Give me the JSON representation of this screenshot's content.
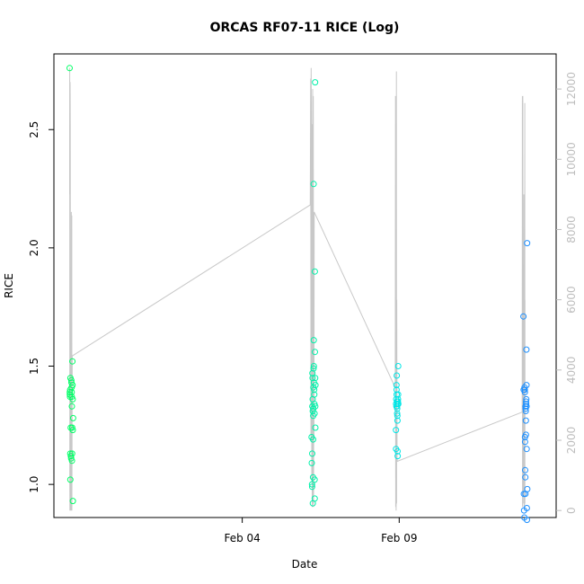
{
  "chart_data": {
    "type": "scatter",
    "title": "ORCAS RF07-11 RICE (Log)",
    "xlabel": "Date",
    "ylabel": "RICE",
    "x_ticks": [
      {
        "date": "2016-02-04",
        "label": "Feb 04"
      },
      {
        "date": "2016-02-09",
        "label": "Feb 09"
      }
    ],
    "xlim": [
      "2016-01-29T00:00",
      "2016-02-14T00:00"
    ],
    "ylim": [
      0.86,
      2.82
    ],
    "y_ticks": [
      1.0,
      1.5,
      2.0,
      2.5
    ],
    "y2lim": [
      -200,
      13000
    ],
    "y2_ticks": [
      0,
      2000,
      4000,
      6000,
      8000,
      10000,
      12000
    ],
    "grid": false,
    "line_color": "#c8c8c8",
    "series": [
      {
        "color": "#00ff66",
        "points": [
          [
            "2016-01-29T12:00",
            2.76
          ],
          [
            "2016-01-29T12:10",
            1.39
          ],
          [
            "2016-01-29T12:15",
            1.38
          ],
          [
            "2016-01-29T12:20",
            1.37
          ],
          [
            "2016-01-29T12:25",
            1.4
          ],
          [
            "2016-01-29T12:30",
            1.13
          ],
          [
            "2016-01-29T12:35",
            1.02
          ],
          [
            "2016-01-29T12:40",
            1.45
          ],
          [
            "2016-01-29T12:50",
            1.24
          ],
          [
            "2016-01-29T13:00",
            1.12
          ],
          [
            "2016-01-29T13:10",
            1.11
          ],
          [
            "2016-01-29T13:20",
            1.44
          ],
          [
            "2016-01-29T13:25",
            1.43
          ],
          [
            "2016-01-29T13:30",
            1.41
          ],
          [
            "2016-01-29T13:35",
            1.39
          ],
          [
            "2016-01-29T13:40",
            1.37
          ],
          [
            "2016-01-29T13:45",
            1.33
          ],
          [
            "2016-01-29T13:50",
            1.1
          ],
          [
            "2016-01-29T13:55",
            1.13
          ],
          [
            "2016-01-29T14:00",
            1.24
          ],
          [
            "2016-01-29T14:10",
            1.52
          ],
          [
            "2016-01-29T14:15",
            1.42
          ],
          [
            "2016-01-29T14:20",
            1.36
          ],
          [
            "2016-01-29T14:25",
            1.23
          ],
          [
            "2016-01-29T14:30",
            0.93
          ],
          [
            "2016-01-29T14:40",
            1.28
          ]
        ]
      },
      {
        "color": "#00f2aa",
        "points": [
          [
            "2016-02-06T05:00",
            1.2
          ],
          [
            "2016-02-06T05:10",
            1.09
          ],
          [
            "2016-02-06T05:20",
            1.0
          ],
          [
            "2016-02-06T05:25",
            0.99
          ],
          [
            "2016-02-06T05:30",
            1.13
          ],
          [
            "2016-02-06T05:35",
            1.33
          ],
          [
            "2016-02-06T05:40",
            1.47
          ],
          [
            "2016-02-06T05:45",
            1.45
          ],
          [
            "2016-02-06T05:50",
            1.36
          ],
          [
            "2016-02-06T05:55",
            1.31
          ],
          [
            "2016-02-06T06:00",
            0.92
          ],
          [
            "2016-02-06T06:05",
            1.03
          ],
          [
            "2016-02-06T06:10",
            1.19
          ],
          [
            "2016-02-06T06:15",
            1.29
          ],
          [
            "2016-02-06T06:20",
            1.32
          ],
          [
            "2016-02-06T06:25",
            1.41
          ],
          [
            "2016-02-06T06:30",
            1.49
          ],
          [
            "2016-02-06T06:35",
            2.27
          ],
          [
            "2016-02-06T06:40",
            1.61
          ],
          [
            "2016-02-06T06:45",
            1.5
          ],
          [
            "2016-02-06T06:50",
            1.43
          ],
          [
            "2016-02-06T07:00",
            1.4
          ],
          [
            "2016-02-06T07:05",
            1.38
          ],
          [
            "2016-02-06T07:10",
            1.34
          ],
          [
            "2016-02-06T07:15",
            1.3
          ],
          [
            "2016-02-06T07:20",
            1.02
          ],
          [
            "2016-02-06T07:25",
            0.94
          ],
          [
            "2016-02-06T07:30",
            1.9
          ],
          [
            "2016-02-06T07:35",
            1.56
          ],
          [
            "2016-02-06T07:40",
            2.7
          ],
          [
            "2016-02-06T07:45",
            1.45
          ],
          [
            "2016-02-06T07:50",
            1.33
          ],
          [
            "2016-02-06T07:55",
            1.24
          ],
          [
            "2016-02-06T08:00",
            1.42
          ]
        ]
      },
      {
        "color": "#00e6e6",
        "points": [
          [
            "2016-02-08T21:30",
            1.23
          ],
          [
            "2016-02-08T21:35",
            1.15
          ],
          [
            "2016-02-08T21:40",
            1.34
          ],
          [
            "2016-02-08T21:45",
            1.36
          ],
          [
            "2016-02-08T21:50",
            1.33
          ],
          [
            "2016-02-08T21:55",
            1.42
          ],
          [
            "2016-02-08T22:00",
            1.4
          ],
          [
            "2016-02-08T22:05",
            1.38
          ],
          [
            "2016-02-08T22:10",
            1.46
          ],
          [
            "2016-02-08T22:15",
            1.35
          ],
          [
            "2016-02-08T22:20",
            1.33
          ],
          [
            "2016-02-08T22:25",
            1.3
          ],
          [
            "2016-02-08T22:30",
            1.32
          ],
          [
            "2016-02-08T22:35",
            1.29
          ],
          [
            "2016-02-08T22:40",
            1.27
          ],
          [
            "2016-02-08T22:45",
            1.14
          ],
          [
            "2016-02-08T22:50",
            1.12
          ],
          [
            "2016-02-08T22:55",
            1.34
          ],
          [
            "2016-02-08T23:00",
            1.35
          ],
          [
            "2016-02-08T23:05",
            1.36
          ],
          [
            "2016-02-08T23:10",
            1.38
          ],
          [
            "2016-02-08T23:15",
            1.5
          ],
          [
            "2016-02-08T23:20",
            1.34
          ]
        ]
      },
      {
        "color": "#1e90ff",
        "points": [
          [
            "2016-02-12T23:00",
            1.71
          ],
          [
            "2016-02-12T23:10",
            1.4
          ],
          [
            "2016-02-12T23:20",
            0.96
          ],
          [
            "2016-02-12T23:30",
            0.89
          ],
          [
            "2016-02-12T23:40",
            0.86
          ],
          [
            "2016-02-12T23:50",
            1.41
          ],
          [
            "2016-02-13T00:00",
            1.4
          ],
          [
            "2016-02-13T00:05",
            1.39
          ],
          [
            "2016-02-13T00:10",
            1.2
          ],
          [
            "2016-02-13T00:15",
            1.18
          ],
          [
            "2016-02-13T00:20",
            1.06
          ],
          [
            "2016-02-13T00:25",
            1.03
          ],
          [
            "2016-02-13T00:30",
            0.96
          ],
          [
            "2016-02-13T00:35",
            1.33
          ],
          [
            "2016-02-13T00:40",
            1.32
          ],
          [
            "2016-02-13T00:45",
            1.31
          ],
          [
            "2016-02-13T00:50",
            1.27
          ],
          [
            "2016-02-13T00:55",
            1.21
          ],
          [
            "2016-02-13T01:00",
            1.35
          ],
          [
            "2016-02-13T01:05",
            1.34
          ],
          [
            "2016-02-13T01:10",
            1.36
          ],
          [
            "2016-02-13T01:15",
            1.57
          ],
          [
            "2016-02-13T01:20",
            1.42
          ],
          [
            "2016-02-13T01:25",
            1.33
          ],
          [
            "2016-02-13T01:30",
            1.15
          ],
          [
            "2016-02-13T01:35",
            0.9
          ],
          [
            "2016-02-13T01:40",
            0.85
          ],
          [
            "2016-02-13T01:50",
            2.02
          ],
          [
            "2016-02-13T01:55",
            0.98
          ]
        ]
      }
    ],
    "secondary_line": [
      [
        "2016-01-29T12:00",
        9000
      ],
      [
        "2016-01-29T12:05",
        12600
      ],
      [
        "2016-01-29T12:08",
        800
      ],
      [
        "2016-01-29T12:12",
        0
      ],
      [
        "2016-01-29T12:20",
        12200
      ],
      [
        "2016-01-29T12:25",
        11800
      ],
      [
        "2016-01-29T12:30",
        11000
      ],
      [
        "2016-01-29T12:35",
        8000
      ],
      [
        "2016-01-29T12:40",
        4000
      ],
      [
        "2016-01-29T12:45",
        1000
      ],
      [
        "2016-01-29T12:50",
        0
      ],
      [
        "2016-01-29T13:00",
        500
      ],
      [
        "2016-01-29T13:10",
        3000
      ],
      [
        "2016-01-29T13:15",
        0
      ],
      [
        "2016-01-29T13:20",
        8500
      ],
      [
        "2016-01-29T13:25",
        100
      ],
      [
        "2016-01-29T13:40",
        8400
      ],
      [
        "2016-01-29T13:45",
        0
      ],
      [
        "2016-01-29T14:00",
        4400
      ],
      [
        "2016-02-06T04:00",
        8700
      ],
      [
        "2016-02-06T04:20",
        12300
      ],
      [
        "2016-02-06T04:30",
        2000
      ],
      [
        "2016-02-06T04:40",
        12600
      ],
      [
        "2016-02-06T04:50",
        11500
      ],
      [
        "2016-02-06T05:00",
        9000
      ],
      [
        "2016-02-06T05:10",
        800
      ],
      [
        "2016-02-06T05:20",
        11000
      ],
      [
        "2016-02-06T05:30",
        100
      ],
      [
        "2016-02-06T05:40",
        6000
      ],
      [
        "2016-02-06T05:50",
        12000
      ],
      [
        "2016-02-06T06:00",
        200
      ],
      [
        "2016-02-06T06:10",
        5000
      ],
      [
        "2016-02-06T06:20",
        11800
      ],
      [
        "2016-02-06T06:30",
        100
      ],
      [
        "2016-02-06T06:40",
        3000
      ],
      [
        "2016-02-06T06:50",
        2000
      ],
      [
        "2016-02-06T07:00",
        8500
      ],
      [
        "2016-02-08T21:00",
        3500
      ],
      [
        "2016-02-08T21:10",
        11800
      ],
      [
        "2016-02-08T21:20",
        100
      ],
      [
        "2016-02-08T21:30",
        8200
      ],
      [
        "2016-02-08T21:40",
        0
      ],
      [
        "2016-02-08T21:50",
        12500
      ],
      [
        "2016-02-08T22:00",
        200
      ],
      [
        "2016-02-08T22:10",
        6000
      ],
      [
        "2016-02-08T22:20",
        1500
      ],
      [
        "2016-02-08T22:30",
        1400
      ],
      [
        "2016-02-12T22:00",
        2800
      ],
      [
        "2016-02-12T22:10",
        11800
      ],
      [
        "2016-02-12T22:20",
        100
      ],
      [
        "2016-02-12T22:30",
        11800
      ],
      [
        "2016-02-12T22:40",
        500
      ],
      [
        "2016-02-12T23:00",
        7000
      ],
      [
        "2016-02-12T23:10",
        200
      ],
      [
        "2016-02-12T23:20",
        9000
      ],
      [
        "2016-02-12T23:30",
        100
      ],
      [
        "2016-02-12T23:40",
        7500
      ],
      [
        "2016-02-12T23:50",
        0
      ],
      [
        "2016-02-13T00:00",
        11600
      ],
      [
        "2016-02-13T00:05",
        200
      ],
      [
        "2016-02-13T00:10",
        6000
      ]
    ]
  }
}
